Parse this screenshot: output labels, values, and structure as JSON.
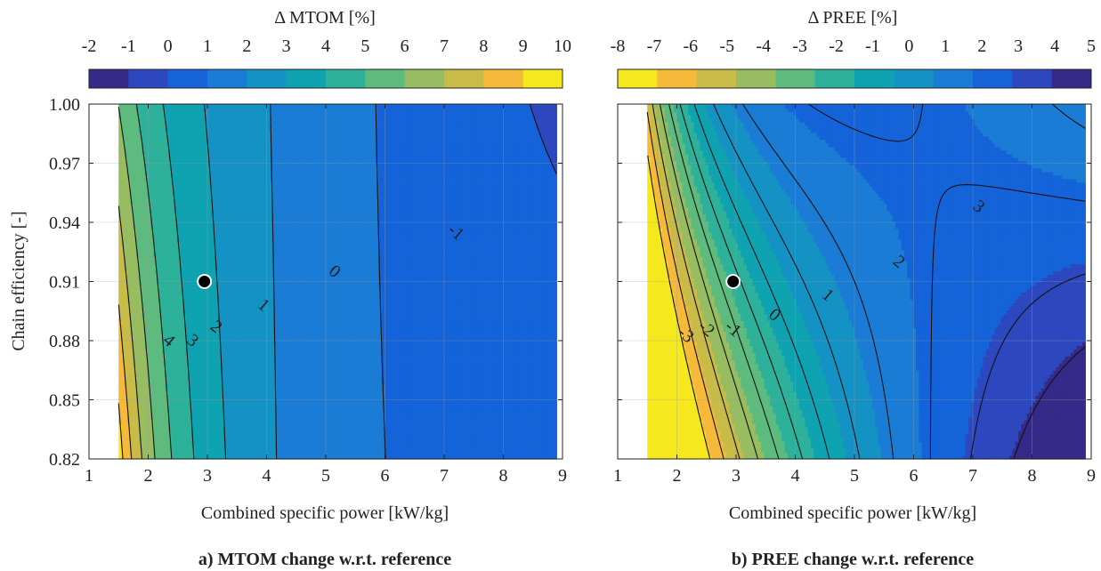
{
  "chart_data": [
    {
      "type": "contour",
      "title": "a) MTOM change w.r.t. reference",
      "colorbar_label": "Δ MTOM [%]",
      "colorbar_ticks": [
        "-2",
        "-1",
        "0",
        "1",
        "2",
        "3",
        "4",
        "5",
        "6",
        "7",
        "8",
        "9",
        "10"
      ],
      "colorbar_colors": [
        "#352a87",
        "#2d48bf",
        "#1563d9",
        "#1a7cd4",
        "#1592c4",
        "#0fa3b1",
        "#2db19a",
        "#5dbb7e",
        "#98bd61",
        "#c9bb48",
        "#f6b93a",
        "#f5e81d"
      ],
      "xlabel": "Combined specific power [kW/kg]",
      "ylabel": "Chain efficiency [-]",
      "x_ticks": [
        "1",
        "2",
        "3",
        "4",
        "5",
        "6",
        "7",
        "8",
        "9"
      ],
      "y_ticks": [
        "0.82",
        "0.85",
        "0.88",
        "0.91",
        "0.94",
        "0.97",
        "1.00"
      ],
      "xlim": [
        1,
        9
      ],
      "ylim": [
        0.82,
        1.0
      ],
      "data_xlim": [
        1.5,
        8.9
      ],
      "levels": [
        -1,
        0,
        1,
        2,
        3,
        4,
        5,
        6,
        7,
        8,
        9
      ],
      "contour_labels": [
        {
          "text": "4",
          "x": 2.35,
          "y": 0.88
        },
        {
          "text": "3",
          "x": 2.75,
          "y": 0.88
        },
        {
          "text": "2",
          "x": 3.15,
          "y": 0.887
        },
        {
          "text": "1",
          "x": 3.95,
          "y": 0.898
        },
        {
          "text": "0",
          "x": 5.15,
          "y": 0.915
        },
        {
          "text": "-1",
          "x": 7.2,
          "y": 0.935
        }
      ],
      "reference_point": {
        "x": 2.95,
        "y": 0.91
      }
    },
    {
      "type": "contour",
      "title": "b) PREE change w.r.t. reference",
      "colorbar_label": "Δ PREE [%]",
      "colorbar_ticks": [
        "-8",
        "-7",
        "-6",
        "-5",
        "-4",
        "-3",
        "-2",
        "-1",
        "0",
        "1",
        "2",
        "3",
        "4",
        "5"
      ],
      "colorbar_colors": [
        "#f5e81d",
        "#f6b93a",
        "#c9bb48",
        "#98bd61",
        "#5dbb7e",
        "#2db19a",
        "#0fa3b1",
        "#1592c4",
        "#1a7cd4",
        "#1563d9",
        "#2d48bf",
        "#352a87"
      ],
      "xlabel": "Combined specific power [kW/kg]",
      "ylabel": "",
      "x_ticks": [
        "1",
        "2",
        "3",
        "4",
        "5",
        "6",
        "7",
        "8",
        "9"
      ],
      "xlim": [
        1,
        9
      ],
      "ylim": [
        0.82,
        1.0
      ],
      "data_xlim": [
        1.5,
        8.9
      ],
      "levels": [
        -7,
        -6,
        -5,
        -4,
        -3,
        -2,
        -1,
        0,
        1,
        2,
        3,
        4
      ],
      "contour_labels": [
        {
          "text": "-3",
          "x": 2.15,
          "y": 0.883
        },
        {
          "text": "-2",
          "x": 2.5,
          "y": 0.886
        },
        {
          "text": "-1",
          "x": 2.95,
          "y": 0.886
        },
        {
          "text": "0",
          "x": 3.65,
          "y": 0.893
        },
        {
          "text": "1",
          "x": 4.55,
          "y": 0.903
        },
        {
          "text": "2",
          "x": 5.75,
          "y": 0.92
        },
        {
          "text": "3",
          "x": 7.1,
          "y": 0.948
        }
      ],
      "reference_point": {
        "x": 2.95,
        "y": 0.91
      }
    }
  ]
}
